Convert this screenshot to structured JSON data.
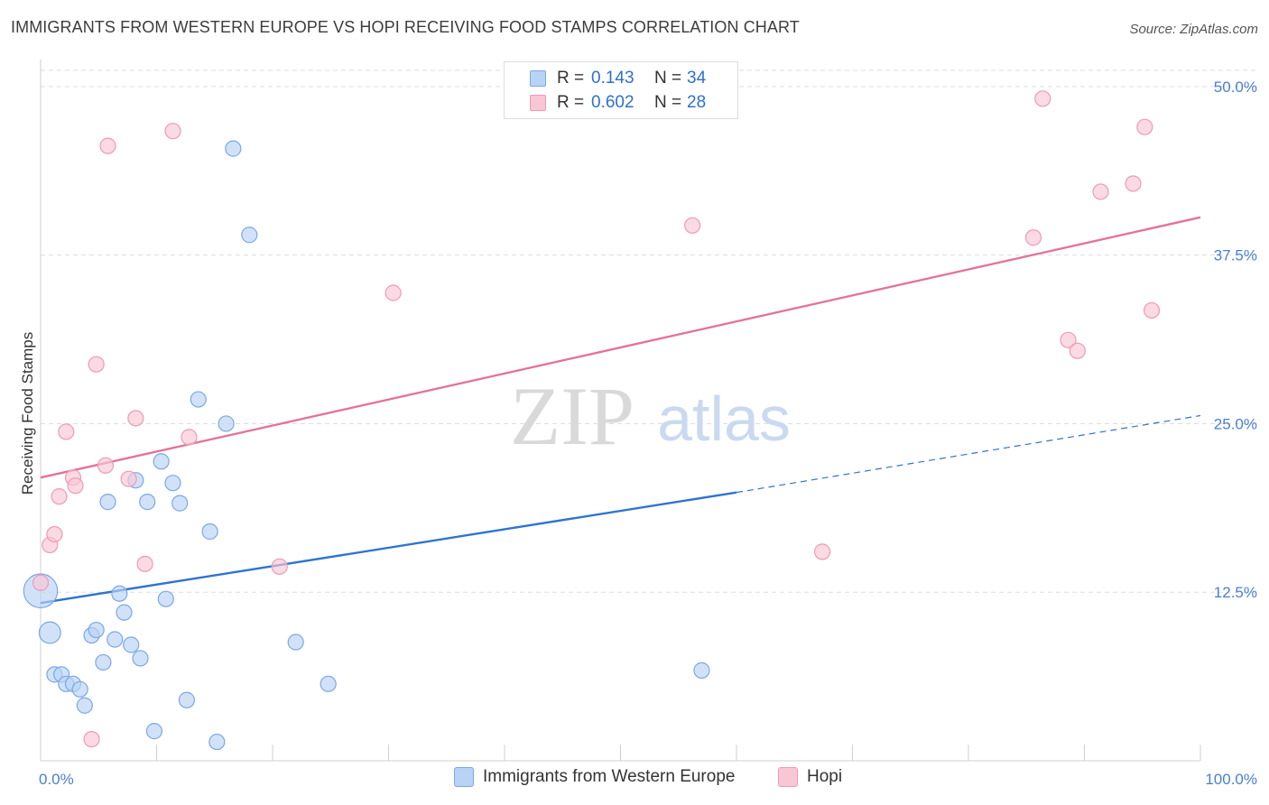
{
  "header": {
    "title": "IMMIGRANTS FROM WESTERN EUROPE VS HOPI RECEIVING FOOD STAMPS CORRELATION CHART",
    "source": "Source: ZipAtlas.com"
  },
  "watermark": {
    "zip": "ZIP",
    "atlas": "atlas"
  },
  "legend": {
    "rows": [
      {
        "r_label": "R =",
        "r_value": "0.143",
        "n_label": "N =",
        "n_value": "34"
      },
      {
        "r_label": "R =",
        "r_value": "0.602",
        "n_label": "N =",
        "n_value": "28"
      }
    ]
  },
  "bottom_legend": [
    "Immigrants from Western Europe",
    "Hopi"
  ],
  "colors": {
    "blue_fill": "#b9d3f5",
    "blue_stroke": "#7aa8e6",
    "blue_line": "#2f74d0",
    "pink_fill": "#f9c6d5",
    "pink_stroke": "#ee9ab5",
    "pink_line": "#e4729a",
    "grid": "#dddddd",
    "tick_text": "#4a7fd0"
  },
  "chart_data": {
    "type": "scatter",
    "title": "IMMIGRANTS FROM WESTERN EUROPE VS HOPI RECEIVING FOOD STAMPS CORRELATION CHART",
    "xlabel": "",
    "ylabel": "Receiving Food Stamps",
    "xlim": [
      0,
      100
    ],
    "ylim": [
      0,
      52
    ],
    "y_ticks": [
      12.5,
      25.0,
      37.5,
      50.0
    ],
    "y_tick_labels": [
      "12.5%",
      "25.0%",
      "37.5%",
      "50.0%"
    ],
    "x_tick_labels": [
      "0.0%",
      "100.0%"
    ],
    "series": [
      {
        "name": "Immigrants from Western Europe",
        "R": 0.143,
        "N": 34,
        "points": [
          [
            0.0,
            12.6,
            2.2
          ],
          [
            0.8,
            9.5,
            1.4
          ],
          [
            1.2,
            6.4,
            1.0
          ],
          [
            1.8,
            6.4,
            1.0
          ],
          [
            2.2,
            5.7,
            1.0
          ],
          [
            2.8,
            5.7,
            1.0
          ],
          [
            3.4,
            5.3,
            1.0
          ],
          [
            3.8,
            4.1,
            1.0
          ],
          [
            4.4,
            9.3,
            1.0
          ],
          [
            4.8,
            9.7,
            1.0
          ],
          [
            5.4,
            7.3,
            1.0
          ],
          [
            6.4,
            9.0,
            1.0
          ],
          [
            5.8,
            19.2,
            1.0
          ],
          [
            6.8,
            12.4,
            1.0
          ],
          [
            7.2,
            11.0,
            1.0
          ],
          [
            7.8,
            8.6,
            1.0
          ],
          [
            8.2,
            20.8,
            1.0
          ],
          [
            8.6,
            7.6,
            1.0
          ],
          [
            9.2,
            19.2,
            1.0
          ],
          [
            9.8,
            2.2,
            1.0
          ],
          [
            10.4,
            22.2,
            1.0
          ],
          [
            10.8,
            12.0,
            1.0
          ],
          [
            11.4,
            20.6,
            1.0
          ],
          [
            12.0,
            19.1,
            1.0
          ],
          [
            12.6,
            4.5,
            1.0
          ],
          [
            13.6,
            26.8,
            1.0
          ],
          [
            14.6,
            17.0,
            1.0
          ],
          [
            15.2,
            1.4,
            1.0
          ],
          [
            16.0,
            25.0,
            1.0
          ],
          [
            16.6,
            45.4,
            1.0
          ],
          [
            18.0,
            39.0,
            1.0
          ],
          [
            22.0,
            8.8,
            1.0
          ],
          [
            24.8,
            5.7,
            1.0
          ],
          [
            57.0,
            6.7,
            1.0
          ]
        ],
        "trend": {
          "x_start": 0,
          "y_start": 11.7,
          "x_end": 60,
          "y_end": 19.9,
          "dashed_to_x": 100,
          "dashed_to_y": 25.6
        }
      },
      {
        "name": "Hopi",
        "R": 0.602,
        "N": 28,
        "points": [
          [
            0.0,
            13.2,
            1.0
          ],
          [
            0.8,
            16.0,
            1.0
          ],
          [
            1.2,
            16.8,
            1.0
          ],
          [
            1.6,
            19.6,
            1.0
          ],
          [
            2.2,
            24.4,
            1.0
          ],
          [
            2.8,
            21.0,
            1.0
          ],
          [
            3.0,
            20.4,
            1.0
          ],
          [
            4.4,
            1.6,
            1.0
          ],
          [
            4.8,
            29.4,
            1.0
          ],
          [
            5.6,
            21.9,
            1.0
          ],
          [
            5.8,
            45.6,
            1.0
          ],
          [
            7.6,
            20.9,
            1.0
          ],
          [
            8.2,
            25.4,
            1.0
          ],
          [
            9.0,
            14.6,
            1.0
          ],
          [
            11.4,
            46.7,
            1.0
          ],
          [
            12.8,
            24.0,
            1.0
          ],
          [
            20.6,
            14.4,
            1.0
          ],
          [
            30.4,
            34.7,
            1.0
          ],
          [
            56.2,
            39.7,
            1.0
          ],
          [
            67.4,
            15.5,
            1.0
          ],
          [
            85.6,
            38.8,
            1.0
          ],
          [
            86.4,
            49.1,
            1.0
          ],
          [
            88.6,
            31.2,
            1.0
          ],
          [
            89.4,
            30.4,
            1.0
          ],
          [
            91.4,
            42.2,
            1.0
          ],
          [
            94.2,
            42.8,
            1.0
          ],
          [
            95.2,
            47.0,
            1.0
          ],
          [
            95.8,
            33.4,
            1.0
          ]
        ],
        "trend": {
          "x_start": 0,
          "y_start": 21.0,
          "x_end": 100,
          "y_end": 40.3
        }
      }
    ]
  }
}
